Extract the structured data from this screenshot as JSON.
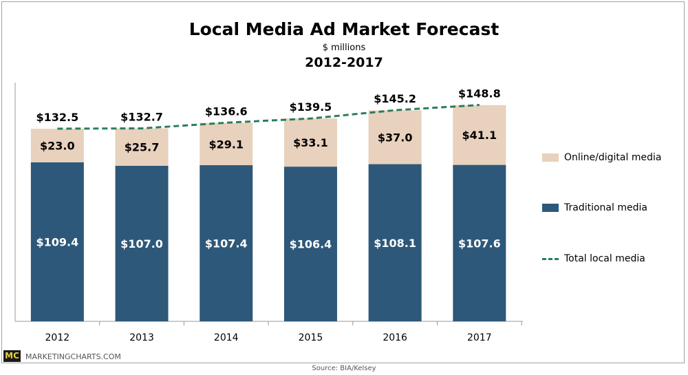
{
  "chart_data": {
    "type": "bar",
    "stacked": true,
    "title": "Local Media Ad Market Forecast",
    "subtitle": "$ millions",
    "subtitle2": "2012-2017",
    "categories": [
      "2012",
      "2013",
      "2014",
      "2015",
      "2016",
      "2017"
    ],
    "series": [
      {
        "name": "Traditional media",
        "values": [
          109.4,
          107.0,
          107.4,
          106.4,
          108.1,
          107.6
        ],
        "labels": [
          "$109.4",
          "$107.0",
          "$107.4",
          "$106.4",
          "$108.1",
          "$107.6"
        ],
        "color": "#2d5879"
      },
      {
        "name": "Online/digital media",
        "values": [
          23.0,
          25.7,
          29.1,
          33.1,
          37.0,
          41.1
        ],
        "labels": [
          "$23.0",
          "$25.7",
          "$29.1",
          "$33.1",
          "$37.0",
          "$41.1"
        ],
        "color": "#e8d1bd"
      },
      {
        "name": "Total local media",
        "type": "line",
        "style": "dashed",
        "values": [
          132.5,
          132.7,
          136.6,
          139.5,
          145.2,
          148.8
        ],
        "labels": [
          "$132.5",
          "$132.7",
          "$136.6",
          "$139.5",
          "$145.2",
          "$148.8"
        ],
        "color": "#2a7d5c"
      }
    ],
    "ylim": [
      0,
      148.8
    ],
    "grid": false,
    "legend": "right"
  },
  "footer": {
    "brand_logo": "MC",
    "brand": "MARKETINGCHARTS.COM",
    "source": "Source: BIA/Kelsey"
  }
}
